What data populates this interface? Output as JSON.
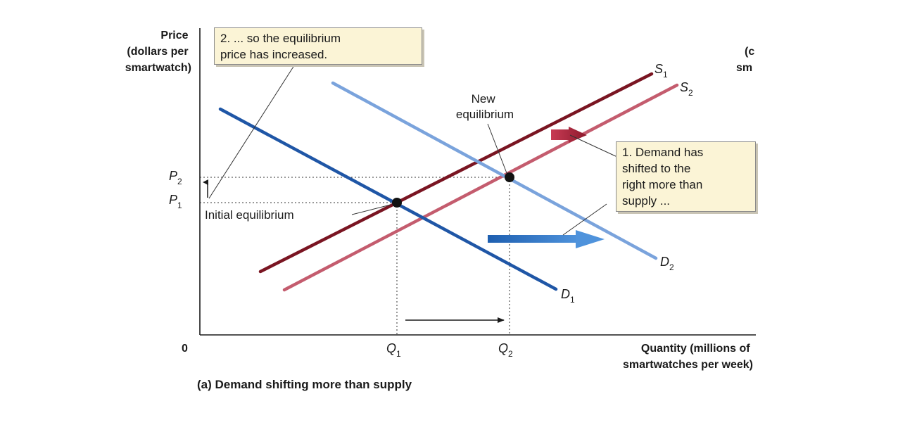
{
  "y_axis_title": [
    "Price",
    "(dollars per",
    "smartwatch)"
  ],
  "x_axis_title": [
    "Quantity (millions of",
    "smartwatches per week)"
  ],
  "origin_label": "0",
  "tick_labels": {
    "p1": {
      "base": "P",
      "sub": "1"
    },
    "p2": {
      "base": "P",
      "sub": "2"
    },
    "q1": {
      "base": "Q",
      "sub": "1"
    },
    "q2": {
      "base": "Q",
      "sub": "2"
    }
  },
  "curve_labels": {
    "s1": {
      "base": "S",
      "sub": "1"
    },
    "s2": {
      "base": "S",
      "sub": "2"
    },
    "d1": {
      "base": "D",
      "sub": "1"
    },
    "d2": {
      "base": "D",
      "sub": "2"
    }
  },
  "annotations": {
    "new_equilibrium": [
      "New",
      "equilibrium"
    ],
    "initial_equilibrium": "Initial equilibrium",
    "callout_price": [
      "2. ... so the equilibrium",
      "price has increased."
    ],
    "callout_demand": [
      "1. Demand has",
      "shifted to the",
      "right more than",
      "supply ..."
    ]
  },
  "caption": "(a) Demand shifting more than supply",
  "cropped_right_text": [
    "(c",
    "sm"
  ],
  "colors": {
    "s1": "#7a1522",
    "s2": "#c45c6e",
    "d1": "#1f56a6",
    "d2": "#7aa3dc",
    "demand_shift_arrow": "#2c6fc0",
    "supply_shift_arrow": "#a4283c",
    "callout_bg": "#fbf4d6"
  }
}
